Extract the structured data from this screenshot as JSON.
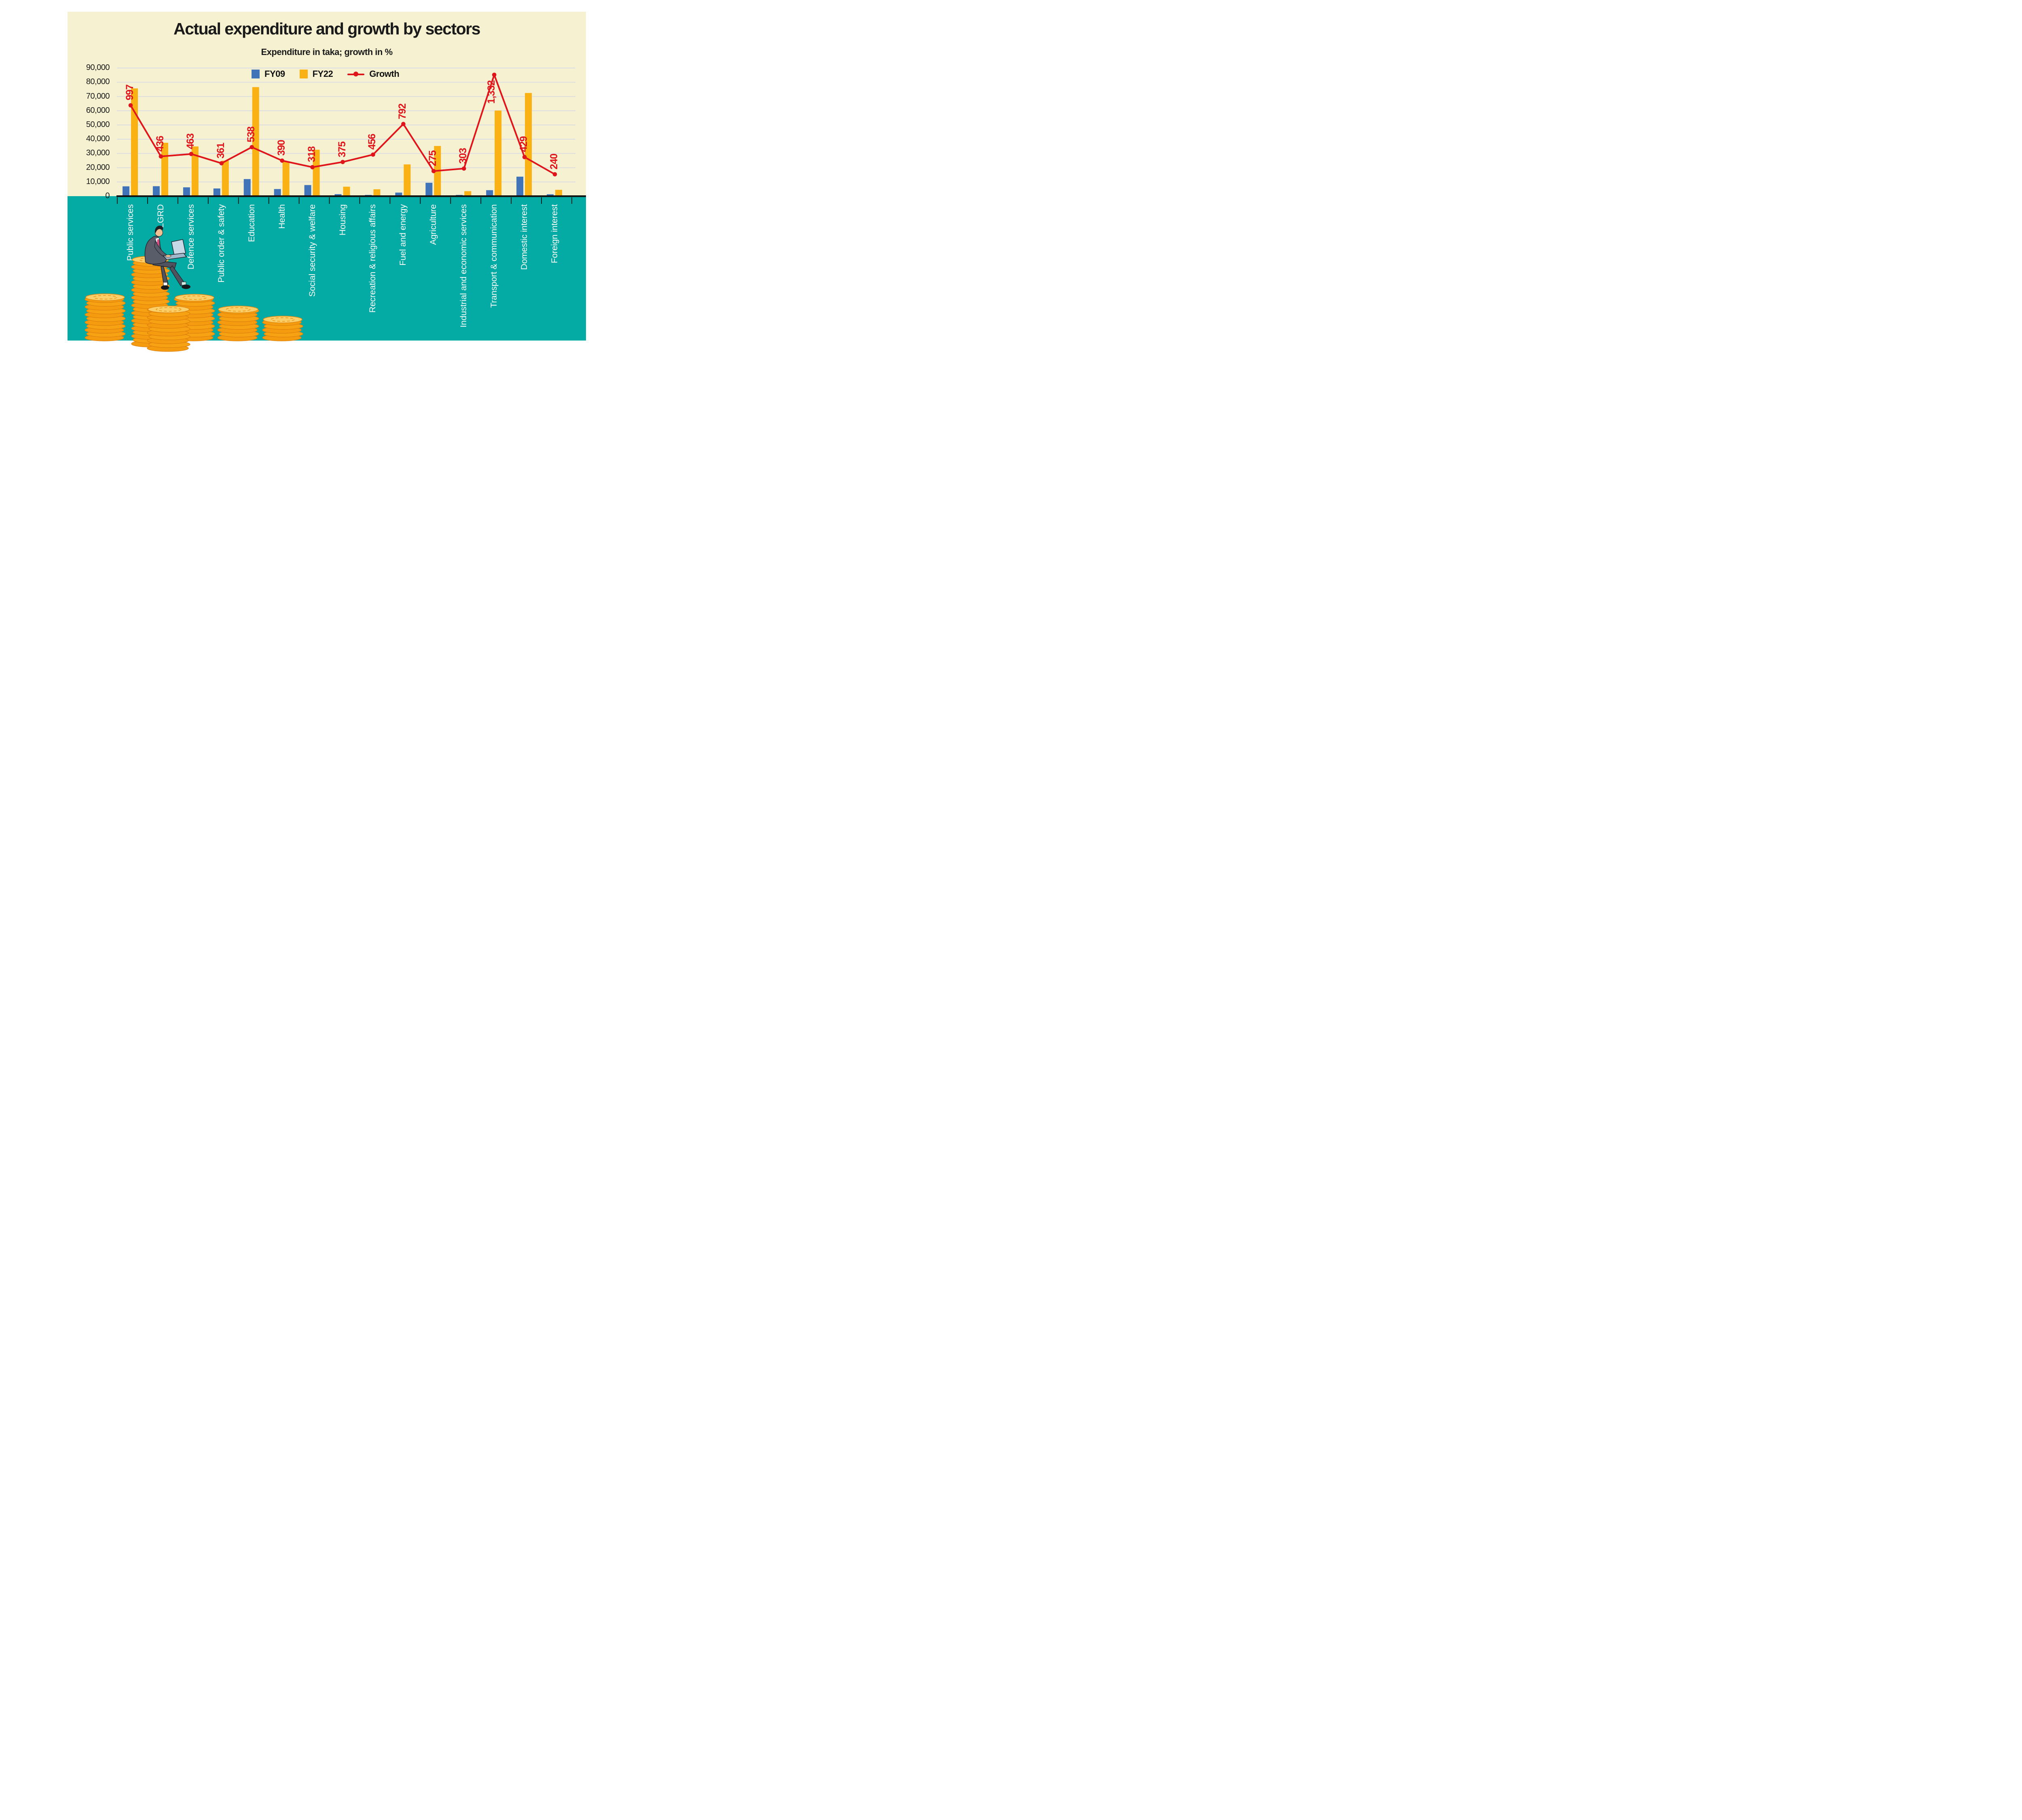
{
  "title": "Actual expenditure and growth by sectors",
  "subtitle": "Expenditure in taka; growth in %",
  "colors": {
    "background": "#FFFFFF",
    "panel_cream": "#F6F2D1",
    "band_teal": "#04ABA4",
    "fy09_blue": "#4173B8",
    "fy22_orange": "#F9B113",
    "growth_red": "#E0151C",
    "gridline": "#D9DAE2",
    "axis_black": "#111111",
    "category_label_white": "#FFFFFF",
    "text": "#1A1A1A"
  },
  "legend": {
    "position": "top-center",
    "marker_icon": "line-dot-marker"
  },
  "chart_data": {
    "type": "bar",
    "title": "Actual expenditure and growth by sectors",
    "subtitle": "Expenditure in taka; growth in %",
    "categories": [
      "Public services",
      "LGRD",
      "Defence services",
      "Public order & safety",
      "Education",
      "Health",
      "Social security & welfare",
      "Housing",
      "Recreation & religious affairs",
      "Fuel and energy",
      "Agriculture",
      "Industrial and economic services",
      "Transport & communication",
      "Domestic interest",
      "Foreign interest"
    ],
    "series": [
      {
        "name": "FY09",
        "type": "bar",
        "color": "#4173B8",
        "values": [
          6900,
          7000,
          6200,
          5400,
          12000,
          5000,
          7800,
          1400,
          870,
          2500,
          9400,
          870,
          4200,
          13700,
          1310
        ]
      },
      {
        "name": "FY22",
        "type": "bar",
        "color": "#F9B113",
        "values": [
          75700,
          37500,
          34900,
          24900,
          76600,
          24500,
          32600,
          6650,
          4840,
          22300,
          35250,
          3510,
          60140,
          72470,
          4450
        ]
      },
      {
        "name": "Growth",
        "type": "line",
        "color": "#E0151C",
        "values": [
          997,
          436,
          463,
          361,
          538,
          390,
          318,
          375,
          456,
          792,
          275,
          303,
          1332,
          429,
          240
        ],
        "labels": [
          "997",
          "436",
          "463",
          "361",
          "538",
          "390",
          "318",
          "375",
          "456",
          "792",
          "275",
          "303",
          "1,332",
          "429",
          "240"
        ]
      }
    ],
    "ylabel": "",
    "xlabel": "",
    "y_axis": {
      "min": 0,
      "max": 90000,
      "tick_step": 10000,
      "ticks": [
        "0",
        "10,000",
        "20,000",
        "30,000",
        "40,000",
        "50,000",
        "60,000",
        "70,000",
        "80,000",
        "90,000"
      ],
      "gridlines": true
    },
    "growth_line_scale_vs_primary_axis": 64,
    "legend_position": "top-center"
  }
}
